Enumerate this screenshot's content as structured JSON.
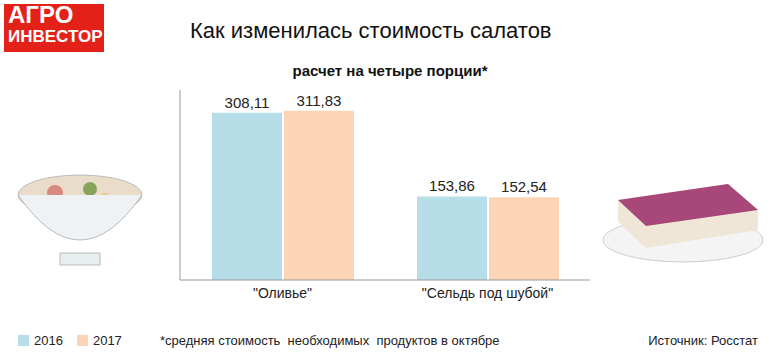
{
  "chart_data": {
    "type": "bar",
    "logo": [
      "АГРО",
      "ИНВЕСТОР"
    ],
    "title": "Как изменилась стоимость салатов",
    "subtitle": "расчет на четыре порции*",
    "categories": [
      "\"Оливье\"",
      "\"Сельдь под шубой\""
    ],
    "series": [
      {
        "name": "2016",
        "color": "#b7dde8",
        "values": [
          308.11,
          153.86
        ],
        "value_labels": [
          "308,11",
          "153,86"
        ]
      },
      {
        "name": "2017",
        "color": "#fbd5b5",
        "values": [
          311.83,
          152.54
        ],
        "value_labels": [
          "311,83",
          "152,54"
        ]
      }
    ],
    "ylim": [
      0,
      350
    ],
    "data_labels": true,
    "tick_labels": "x",
    "grid": false,
    "legend": "bottom-left",
    "note": "*средняя стоимость  необходимых  продуктов в октябре",
    "source": "Источник: Росстат"
  }
}
